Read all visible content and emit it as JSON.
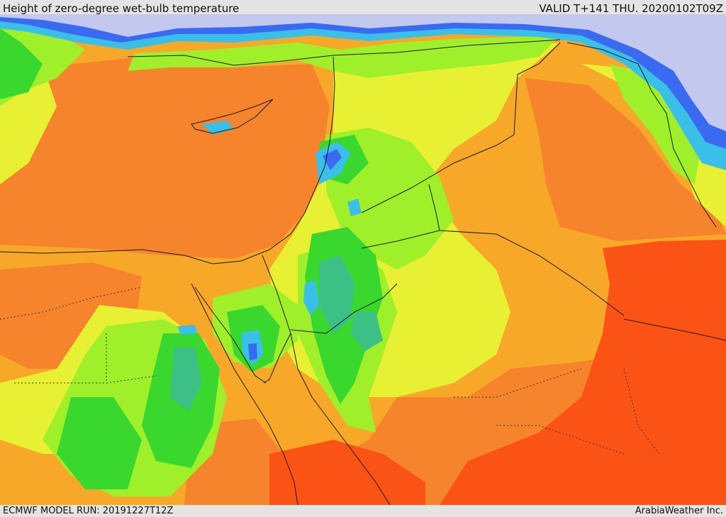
{
  "header": {
    "title": "Height of zero-degree wet-bulb temperature",
    "valid_time": "VALID T+141 THU. 20200102T09Z"
  },
  "footer": {
    "model_run": "ECMWF MODEL RUN: 20191227T12Z",
    "credit": "ArabiaWeather Inc."
  },
  "palette": {
    "deep_orange": "#fb5316",
    "orange": "#f5842d",
    "light_orange": "#f8a828",
    "yellow": "#e8f034",
    "yellow_green": "#9ff02a",
    "green": "#3ad82e",
    "teal": "#3cc086",
    "cyan": "#39bfe8",
    "blue": "#3a6af0",
    "lavender": "#c3c8ee",
    "border_line": "#1a1a1a"
  }
}
